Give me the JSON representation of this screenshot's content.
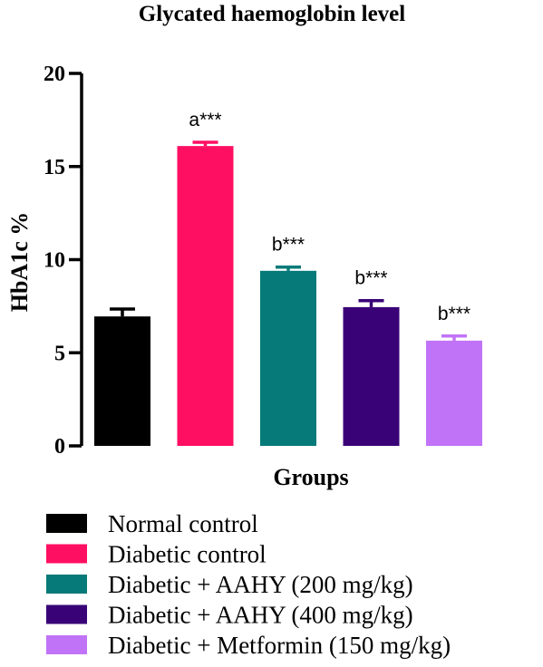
{
  "chart_data": {
    "type": "bar",
    "title": "Glycated haemoglobin level",
    "xlabel": "Groups",
    "ylabel": "HbA1c %",
    "ylim": [
      0,
      20
    ],
    "yticks": [
      0,
      5,
      10,
      15,
      20
    ],
    "grid": false,
    "legend_position": "bottom",
    "series": [
      {
        "name": "Normal control",
        "value": 6.95,
        "error": 0.4,
        "color": "#000000",
        "annotation": ""
      },
      {
        "name": "Diabetic control",
        "value": 16.1,
        "error": 0.2,
        "color": "#ff0f62",
        "annotation": "a***"
      },
      {
        "name": "Diabetic + AAHY (200 mg/kg)",
        "value": 9.4,
        "error": 0.2,
        "color": "#057a78",
        "annotation": "b***"
      },
      {
        "name": "Diabetic + AAHY (400 mg/kg)",
        "value": 7.45,
        "error": 0.35,
        "color": "#3a0277",
        "annotation": "b***"
      },
      {
        "name": "Diabetic + Metformin (150 mg/kg)",
        "value": 5.65,
        "error": 0.25,
        "color": "#c173f7",
        "annotation": "b***"
      }
    ]
  }
}
